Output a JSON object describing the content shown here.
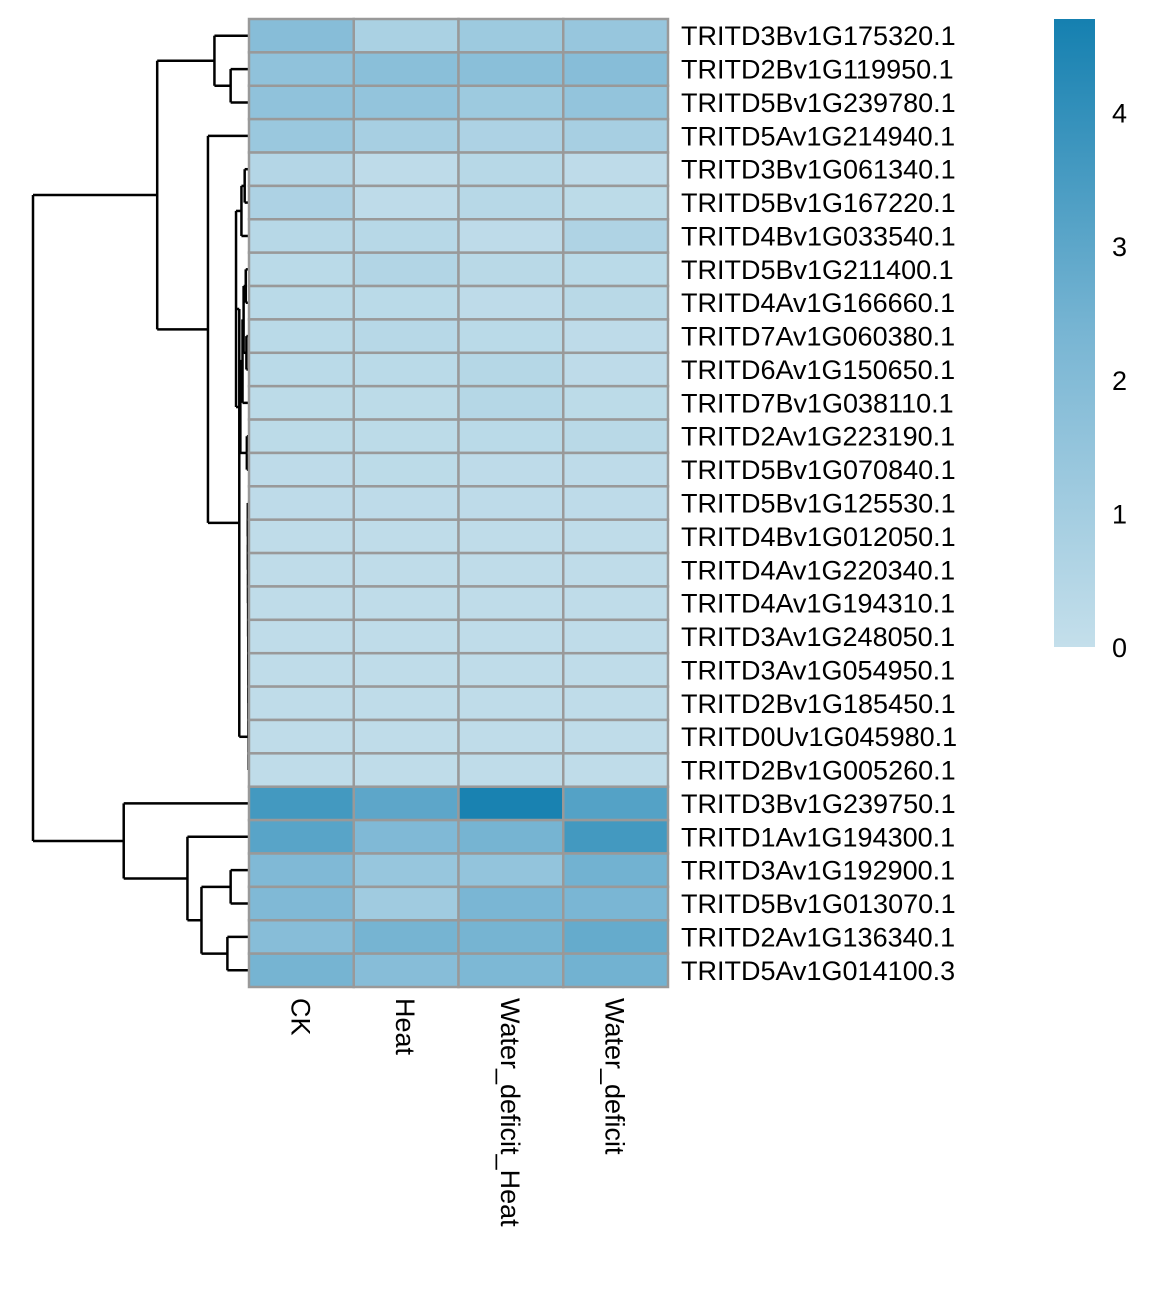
{
  "chart_data": {
    "type": "heatmap",
    "title": "",
    "columns": [
      "CK",
      "Heat",
      "Water_deficit_Heat",
      "Water_deficit"
    ],
    "rows": [
      "TRITD3Bv1G175320.1",
      "TRITD2Bv1G119950.1",
      "TRITD5Bv1G239780.1",
      "TRITD5Av1G214940.1",
      "TRITD3Bv1G061340.1",
      "TRITD5Bv1G167220.1",
      "TRITD4Bv1G033540.1",
      "TRITD5Bv1G211400.1",
      "TRITD4Av1G166660.1",
      "TRITD7Av1G060380.1",
      "TRITD6Av1G150650.1",
      "TRITD7Bv1G038110.1",
      "TRITD2Av1G223190.1",
      "TRITD5Bv1G070840.1",
      "TRITD5Bv1G125530.1",
      "TRITD4Bv1G012050.1",
      "TRITD4Av1G220340.1",
      "TRITD4Av1G194310.1",
      "TRITD3Av1G248050.1",
      "TRITD3Av1G054950.1",
      "TRITD2Bv1G185450.1",
      "TRITD0Uv1G045980.1",
      "TRITD2Bv1G005260.1",
      "TRITD3Bv1G239750.1",
      "TRITD1Av1G194300.1",
      "TRITD3Av1G192900.1",
      "TRITD5Bv1G013070.1",
      "TRITD2Av1G136340.1",
      "TRITD5Av1G014100.3"
    ],
    "values": [
      [
        1.9,
        0.8,
        1.2,
        1.4
      ],
      [
        1.6,
        1.8,
        1.8,
        1.9
      ],
      [
        1.6,
        1.5,
        1.2,
        1.5
      ],
      [
        1.3,
        0.9,
        0.7,
        0.9
      ],
      [
        0.5,
        0.2,
        0.4,
        0.2
      ],
      [
        0.7,
        0.2,
        0.4,
        0.25
      ],
      [
        0.4,
        0.4,
        0.2,
        0.65
      ],
      [
        0.3,
        0.55,
        0.35,
        0.3
      ],
      [
        0.3,
        0.3,
        0.2,
        0.35
      ],
      [
        0.3,
        0.4,
        0.3,
        0.2
      ],
      [
        0.3,
        0.3,
        0.45,
        0.2
      ],
      [
        0.25,
        0.25,
        0.45,
        0.25
      ],
      [
        0.25,
        0.25,
        0.3,
        0.35
      ],
      [
        0.2,
        0.25,
        0.2,
        0.2
      ],
      [
        0.2,
        0.2,
        0.2,
        0.2
      ],
      [
        0.15,
        0.15,
        0.15,
        0.15
      ],
      [
        0.15,
        0.15,
        0.15,
        0.15
      ],
      [
        0.15,
        0.15,
        0.15,
        0.15
      ],
      [
        0.15,
        0.15,
        0.15,
        0.15
      ],
      [
        0.15,
        0.15,
        0.15,
        0.15
      ],
      [
        0.15,
        0.15,
        0.15,
        0.15
      ],
      [
        0.15,
        0.15,
        0.15,
        0.15
      ],
      [
        0.15,
        0.15,
        0.15,
        0.15
      ],
      [
        3.6,
        3.0,
        4.6,
        3.2
      ],
      [
        3.1,
        2.1,
        2.4,
        3.6
      ],
      [
        2.1,
        1.4,
        1.5,
        2.5
      ],
      [
        2.1,
        1.1,
        2.3,
        2.3
      ],
      [
        1.9,
        2.4,
        2.4,
        2.8
      ],
      [
        2.4,
        1.9,
        2.2,
        2.5
      ]
    ],
    "color_scale": {
      "min": 0,
      "max": 4.7,
      "low_color": "#c4dfeb",
      "mid_color": "#78b5d3",
      "high_color": "#1580b0"
    },
    "legend": {
      "position": "right",
      "ticks": [
        "0",
        "1",
        "2",
        "3",
        "4"
      ],
      "tick_values": [
        0,
        1,
        2,
        3,
        4
      ]
    },
    "row_dendrogram": {
      "side": "left",
      "merges": [
        {
          "a": 1,
          "b": 2,
          "height": 0.05
        },
        {
          "a": 0,
          "b": "1-2",
          "height": 0.1
        },
        {
          "a": 25,
          "b": 26,
          "height": 0.08
        },
        {
          "a": 27,
          "b": 28,
          "height": 0.1
        },
        {
          "a": "25-26",
          "b": "27-28",
          "height": 0.18
        },
        {
          "a": 24,
          "b": "25-28",
          "height": 0.33
        },
        {
          "a": 23,
          "b": "24-28",
          "height": 0.55
        },
        {
          "a": 3,
          "b": "4-22",
          "height": 0.18
        },
        {
          "a": "0-2",
          "b": "3-22",
          "height": 0.4
        },
        {
          "a": "0-22",
          "b": "23-28",
          "height": 1.0
        }
      ]
    }
  }
}
